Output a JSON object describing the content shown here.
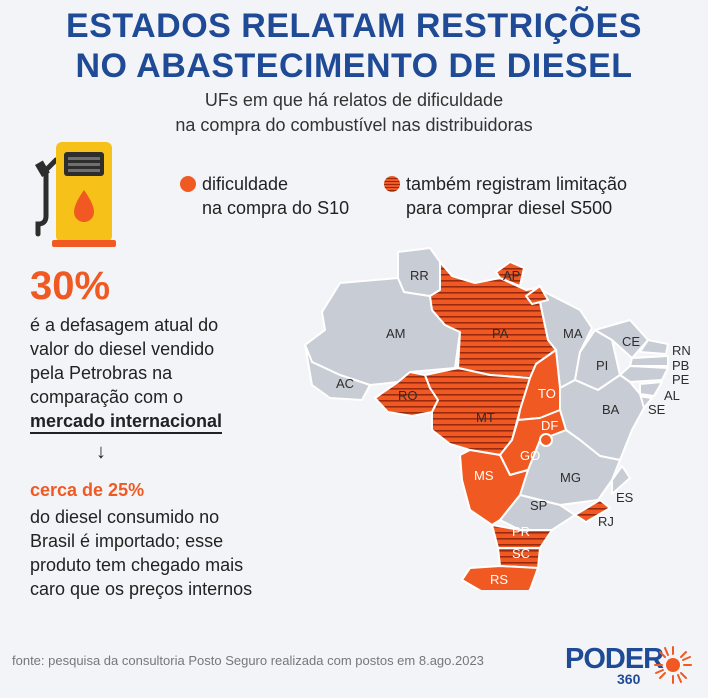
{
  "title": {
    "line1": "ESTADOS RELATAM RESTRIÇÕES",
    "line2": "NO ABASTECIMENTO DE DIESEL"
  },
  "subtitle": {
    "line1": "UFs em que há relatos de dificuldade",
    "line2": "na compra do combustível nas distribuidoras"
  },
  "legend": {
    "s10_line1": "dificuldade",
    "s10_line2": "na compra do S10",
    "s500_line1": "também registram limitação",
    "s500_line2": "para comprar diesel S500"
  },
  "stat1": {
    "value": "30%",
    "line1": "é a defasagem atual do",
    "line2": "valor do diesel vendido",
    "line3": "pela Petrobras na",
    "line4": "comparação com o",
    "line5": "mercado internacional"
  },
  "stat2": {
    "value": "cerca de 25%",
    "line1": "do diesel consumido no",
    "line2": "Brasil é importado; esse",
    "line3": "produto tem chegado mais",
    "line4": "caro que os preços internos"
  },
  "map": {
    "labels": {
      "RR": "RR",
      "AP": "AP",
      "AM": "AM",
      "PA": "PA",
      "MA": "MA",
      "CE": "CE",
      "RN": "RN",
      "PB": "PB",
      "PE": "PE",
      "AL": "AL",
      "SE": "SE",
      "PI": "PI",
      "BA": "BA",
      "AC": "AC",
      "RO": "RO",
      "MT": "MT",
      "TO": "TO",
      "DF": "DF",
      "GO": "GO",
      "MG": "MG",
      "ES": "ES",
      "MS": "MS",
      "SP": "SP",
      "RJ": "RJ",
      "PR": "PR",
      "SC": "SC",
      "RS": "RS"
    },
    "s10_states": [
      "RO",
      "PA",
      "MT",
      "TO",
      "GO",
      "DF",
      "MS",
      "RJ",
      "PR",
      "SC",
      "RS",
      "AP"
    ],
    "s500_states": [
      "RO",
      "PA",
      "MT",
      "PR",
      "SC",
      "AP",
      "RJ"
    ],
    "colors": {
      "highlight": "#f05a22",
      "hatch": "#9a2a0f",
      "neutral": "#c8ccd4",
      "border": "#ffffff"
    }
  },
  "source": "fonte: pesquisa da consultoria Posto Seguro realizada com postos em 8.ago.2023",
  "logo": {
    "word": "PODER",
    "number": "360"
  }
}
